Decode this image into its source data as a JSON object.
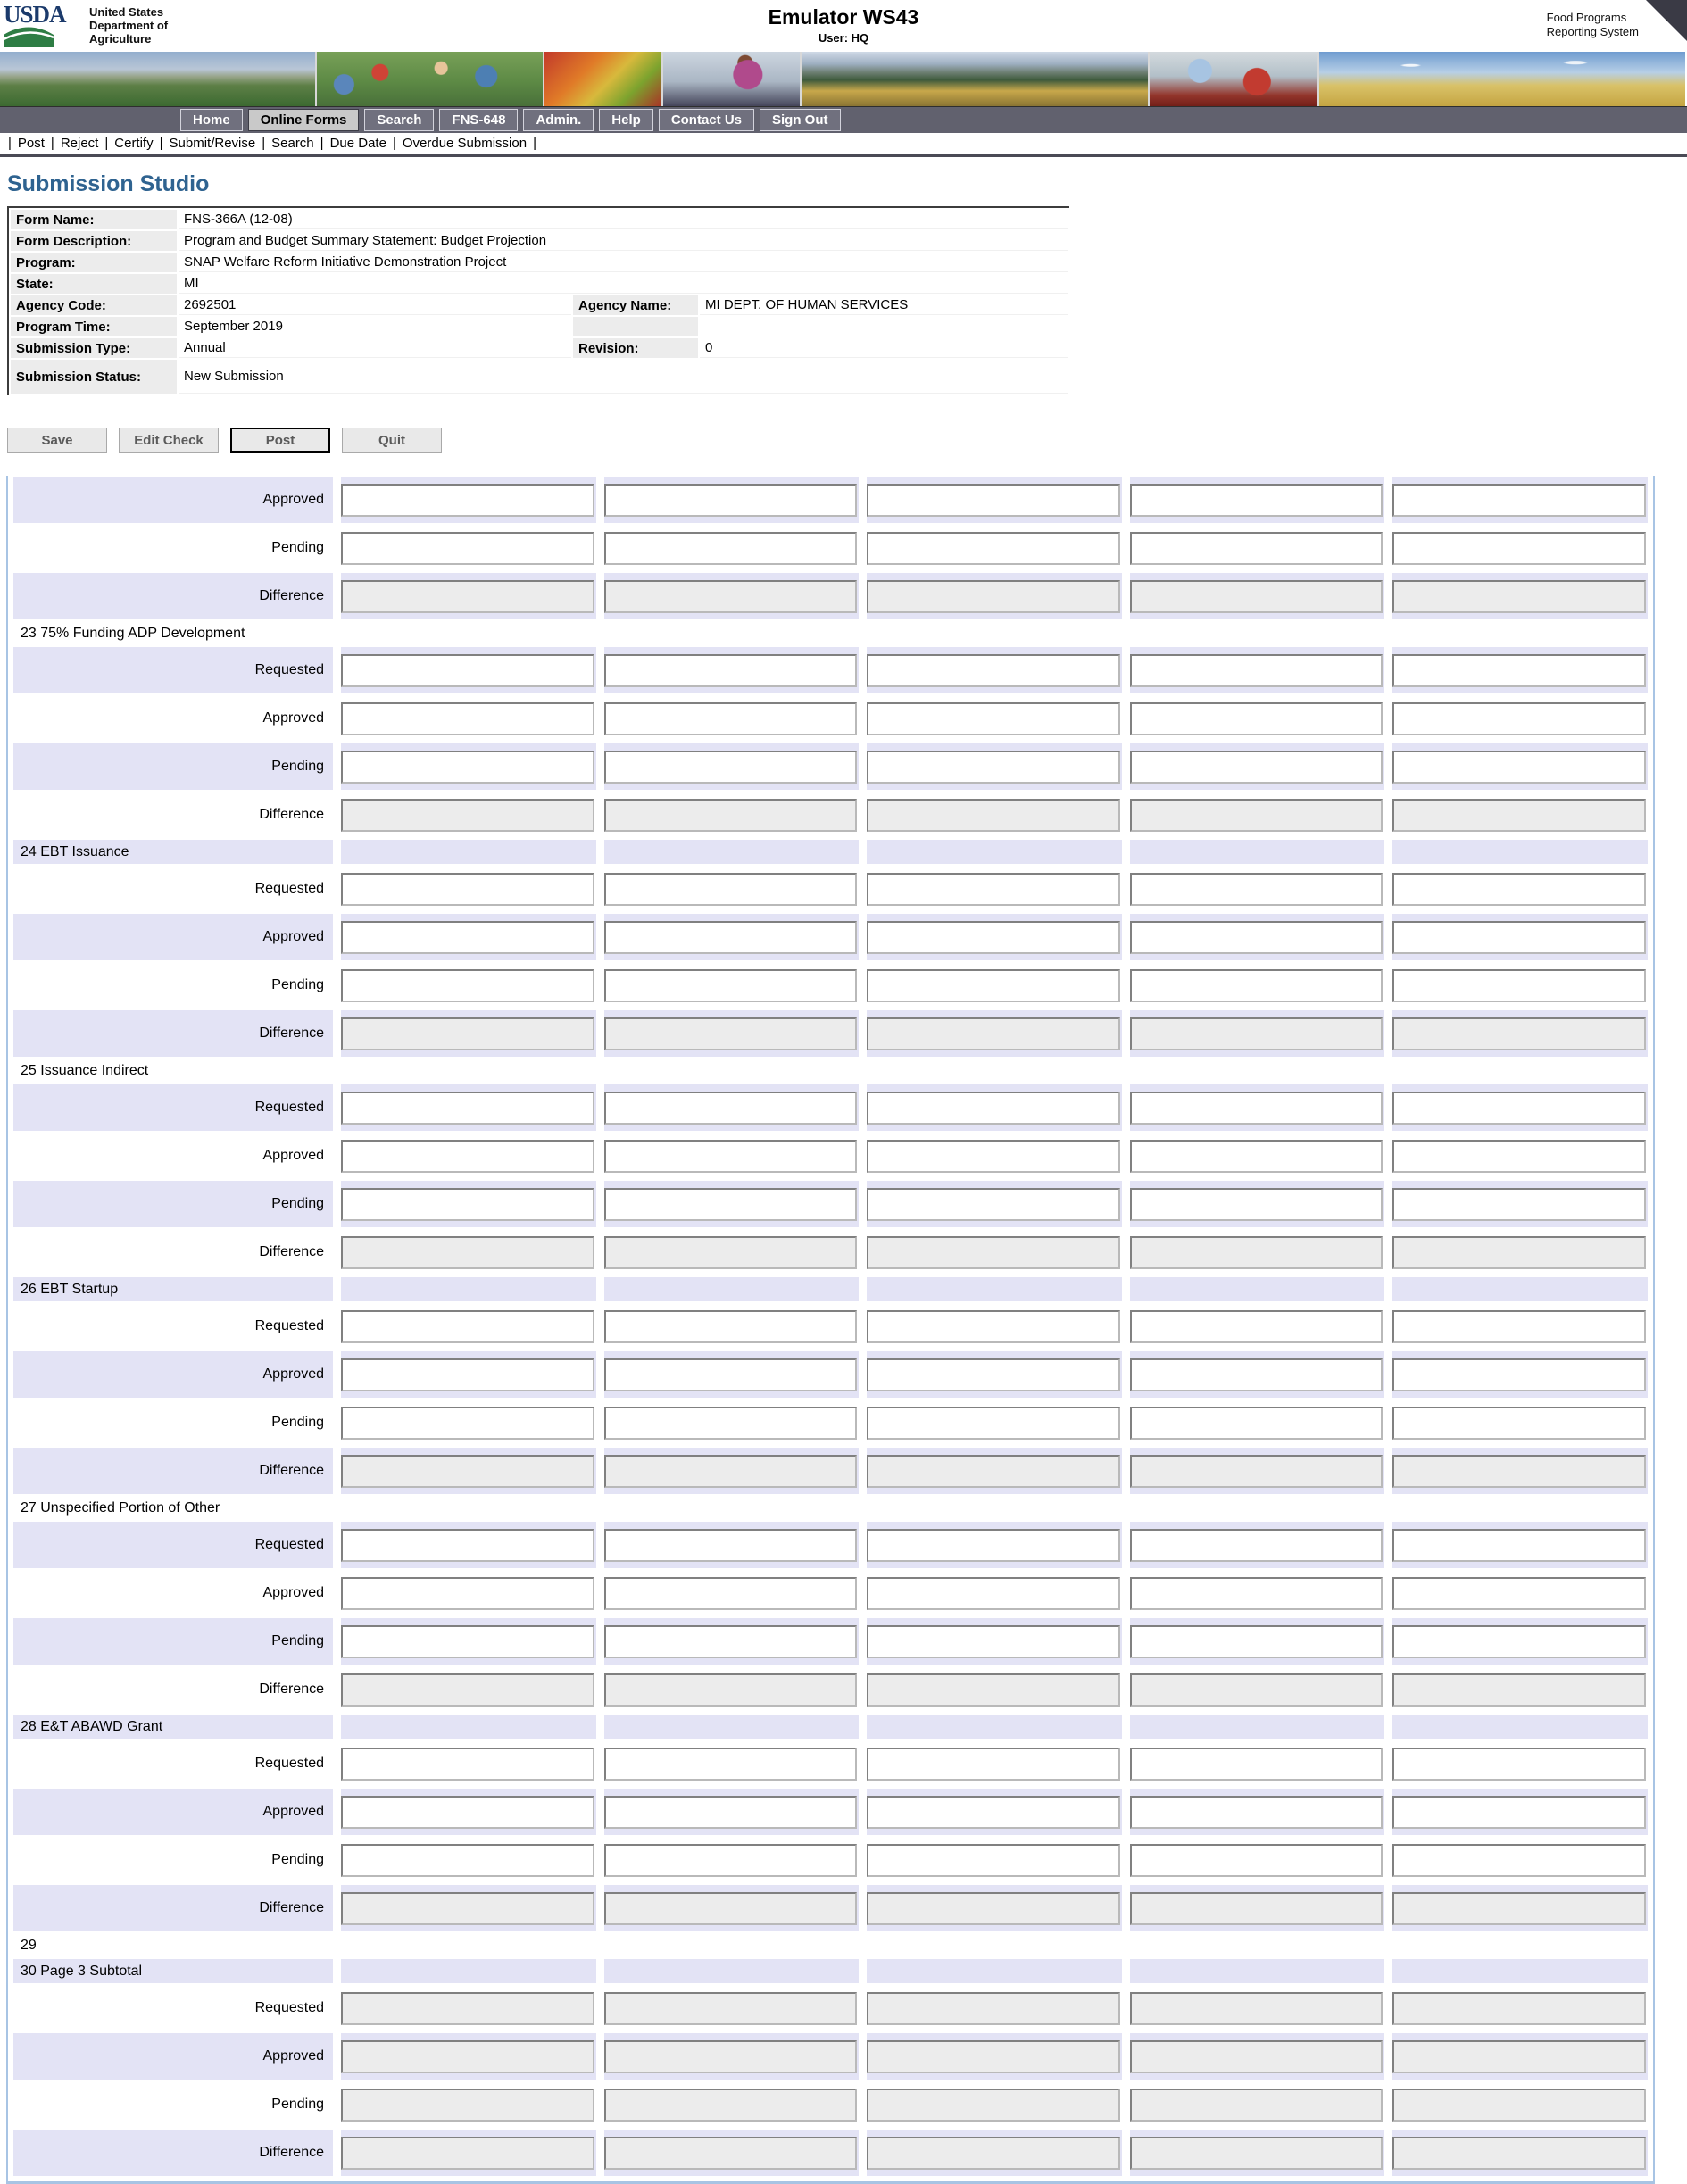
{
  "header": {
    "logo_text": "USDA",
    "dept_lines": [
      "United States",
      "Department of",
      "Agriculture"
    ],
    "app_title": "Emulator WS43",
    "user_line": "User: HQ",
    "system_name_line1": "Food Programs",
    "system_name_line2": "Reporting System"
  },
  "banner": {
    "photos": [
      "farm-field-photo",
      "family-picnic-photo",
      "vegetables-photo",
      "classroom-photo",
      "mountain-valley-photo",
      "family-apples-photo",
      "wheat-field-photo"
    ]
  },
  "nav": {
    "tabs": [
      {
        "label": "Home",
        "active": false
      },
      {
        "label": "Online Forms",
        "active": true
      },
      {
        "label": "Search",
        "active": false
      },
      {
        "label": "FNS-648",
        "active": false
      },
      {
        "label": "Admin.",
        "active": false
      },
      {
        "label": "Help",
        "active": false
      },
      {
        "label": "Contact Us",
        "active": false
      },
      {
        "label": "Sign Out",
        "active": false
      }
    ],
    "sub_items": [
      "Post",
      "Reject",
      "Certify",
      "Submit/Revise",
      "Search",
      "Due Date",
      "Overdue Submission"
    ]
  },
  "page": {
    "title": "Submission Studio"
  },
  "info": {
    "form_name_label": "Form Name:",
    "form_name": "FNS-366A (12-08)",
    "form_desc_label": "Form Description:",
    "form_desc": "Program and Budget Summary Statement: Budget Projection",
    "program_label": "Program:",
    "program": "SNAP Welfare Reform Initiative Demonstration Project",
    "state_label": "State:",
    "state": "MI",
    "agency_code_label": "Agency Code:",
    "agency_code": "2692501",
    "agency_name_label": "Agency Name:",
    "agency_name": "MI DEPT. OF HUMAN SERVICES",
    "program_time_label": "Program Time:",
    "program_time": "September 2019",
    "submission_type_label": "Submission Type:",
    "submission_type": "Annual",
    "revision_label": "Revision:",
    "revision": "0",
    "submission_status_label": "Submission Status:",
    "submission_status": "New Submission"
  },
  "toolbar": {
    "buttons": [
      {
        "label": "Save",
        "focused": false
      },
      {
        "label": "Edit Check",
        "focused": false
      },
      {
        "label": "Post",
        "focused": true
      },
      {
        "label": "Quit",
        "focused": false
      }
    ]
  },
  "grid": {
    "columns": 5,
    "input_value": "",
    "rows": [
      {
        "type": "input",
        "label": "Approved",
        "shade": "lav",
        "disabled": false
      },
      {
        "type": "input",
        "label": "Pending",
        "shade": "wht",
        "disabled": false
      },
      {
        "type": "input",
        "label": "Difference",
        "shade": "lav",
        "disabled": true
      },
      {
        "type": "header",
        "label": "23 75% Funding ADP Development",
        "shade": "wht"
      },
      {
        "type": "input",
        "label": "Requested",
        "shade": "lav",
        "disabled": false
      },
      {
        "type": "input",
        "label": "Approved",
        "shade": "wht",
        "disabled": false
      },
      {
        "type": "input",
        "label": "Pending",
        "shade": "lav",
        "disabled": false
      },
      {
        "type": "input",
        "label": "Difference",
        "shade": "wht",
        "disabled": true
      },
      {
        "type": "header",
        "label": "24 EBT Issuance",
        "shade": "lav"
      },
      {
        "type": "input",
        "label": "Requested",
        "shade": "wht",
        "disabled": false
      },
      {
        "type": "input",
        "label": "Approved",
        "shade": "lav",
        "disabled": false
      },
      {
        "type": "input",
        "label": "Pending",
        "shade": "wht",
        "disabled": false
      },
      {
        "type": "input",
        "label": "Difference",
        "shade": "lav",
        "disabled": true
      },
      {
        "type": "header",
        "label": "25 Issuance Indirect",
        "shade": "wht"
      },
      {
        "type": "input",
        "label": "Requested",
        "shade": "lav",
        "disabled": false
      },
      {
        "type": "input",
        "label": "Approved",
        "shade": "wht",
        "disabled": false
      },
      {
        "type": "input",
        "label": "Pending",
        "shade": "lav",
        "disabled": false
      },
      {
        "type": "input",
        "label": "Difference",
        "shade": "wht",
        "disabled": true
      },
      {
        "type": "header",
        "label": "26 EBT Startup",
        "shade": "lav"
      },
      {
        "type": "input",
        "label": "Requested",
        "shade": "wht",
        "disabled": false
      },
      {
        "type": "input",
        "label": "Approved",
        "shade": "lav",
        "disabled": false
      },
      {
        "type": "input",
        "label": "Pending",
        "shade": "wht",
        "disabled": false
      },
      {
        "type": "input",
        "label": "Difference",
        "shade": "lav",
        "disabled": true
      },
      {
        "type": "header",
        "label": "27 Unspecified Portion of Other",
        "shade": "wht"
      },
      {
        "type": "input",
        "label": "Requested",
        "shade": "lav",
        "disabled": false
      },
      {
        "type": "input",
        "label": "Approved",
        "shade": "wht",
        "disabled": false
      },
      {
        "type": "input",
        "label": "Pending",
        "shade": "lav",
        "disabled": false
      },
      {
        "type": "input",
        "label": "Difference",
        "shade": "wht",
        "disabled": true
      },
      {
        "type": "header",
        "label": "28 E&T ABAWD Grant",
        "shade": "lav"
      },
      {
        "type": "input",
        "label": "Requested",
        "shade": "wht",
        "disabled": false
      },
      {
        "type": "input",
        "label": "Approved",
        "shade": "lav",
        "disabled": false
      },
      {
        "type": "input",
        "label": "Pending",
        "shade": "wht",
        "disabled": false
      },
      {
        "type": "input",
        "label": "Difference",
        "shade": "lav",
        "disabled": true
      },
      {
        "type": "header",
        "label": "29",
        "shade": "wht"
      },
      {
        "type": "header",
        "label": "30 Page 3 Subtotal",
        "shade": "lav"
      },
      {
        "type": "input",
        "label": "Requested",
        "shade": "wht",
        "disabled": true
      },
      {
        "type": "input",
        "label": "Approved",
        "shade": "lav",
        "disabled": true
      },
      {
        "type": "input",
        "label": "Pending",
        "shade": "wht",
        "disabled": true
      },
      {
        "type": "input",
        "label": "Difference",
        "shade": "lav",
        "disabled": true
      }
    ]
  },
  "colors": {
    "heading_blue": "#2f6390",
    "row_lavender": "#e3e3f5",
    "nav_bar": "#61616e",
    "grid_border_blue": "#a8c4e4",
    "disabled_input_bg": "#ececec"
  }
}
